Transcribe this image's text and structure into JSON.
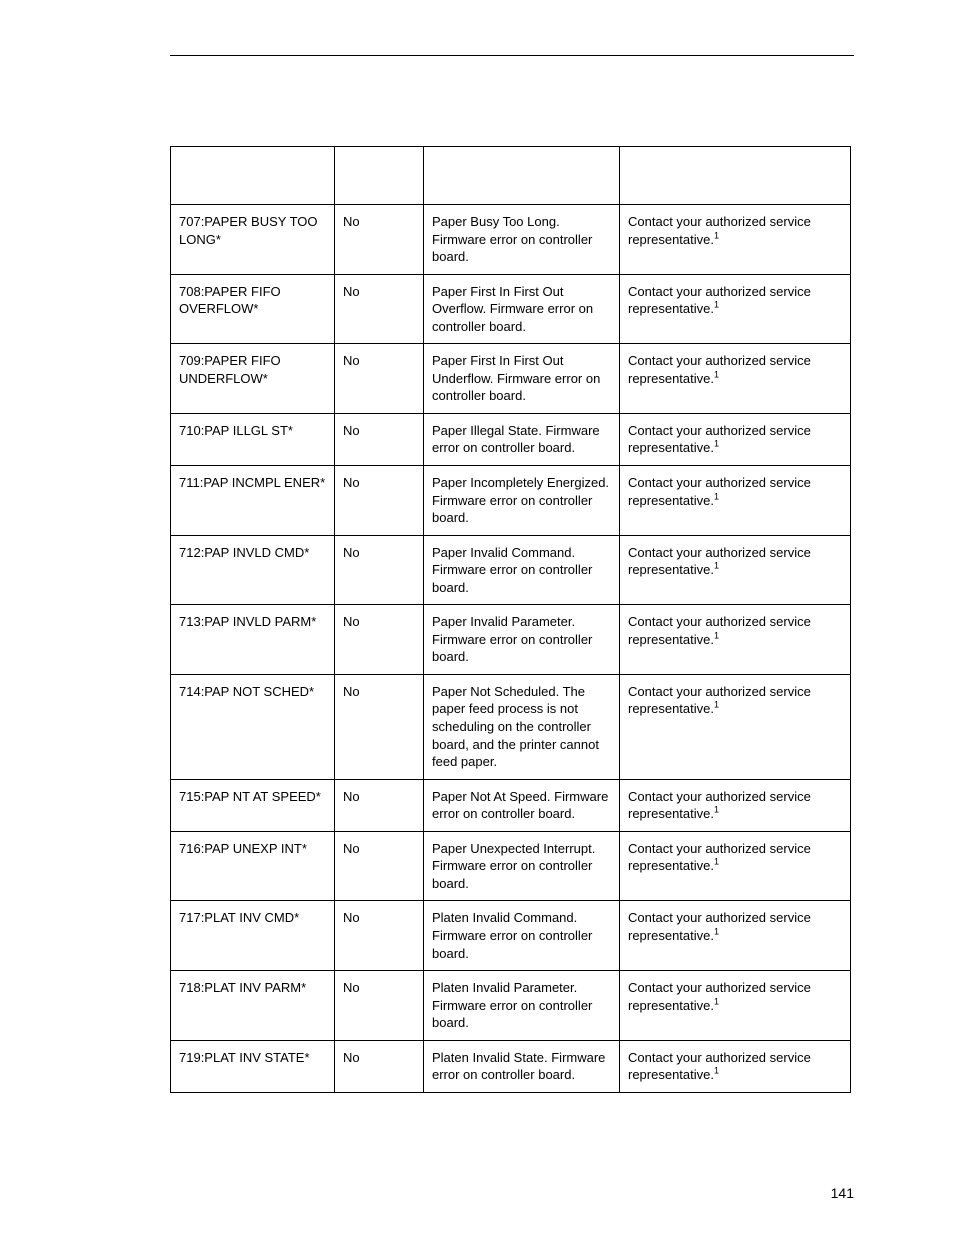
{
  "page_number": "141",
  "table": {
    "rows": [
      {
        "msg": "707:PAPER BUSY TOO LONG*",
        "clr": "No",
        "expl": "Paper Busy Too Long. Firmware error on controller board.",
        "sol": "Contact your authorized service representative.",
        "sup": "1"
      },
      {
        "msg": "708:PAPER FIFO OVERFLOW*",
        "clr": "No",
        "expl": "Paper First In First Out Overflow. Firmware error on controller board.",
        "sol": "Contact your authorized service representative.",
        "sup": "1"
      },
      {
        "msg": "709:PAPER FIFO UNDERFLOW*",
        "clr": "No",
        "expl": "Paper First In First Out Underflow. Firmware error on controller board.",
        "sol": "Contact your authorized service representative.",
        "sup": "1"
      },
      {
        "msg": "710:PAP ILLGL ST*",
        "clr": "No",
        "expl": "Paper Illegal State. Firmware error on controller board.",
        "sol": "Contact your authorized service representative.",
        "sup": "1"
      },
      {
        "msg": "711:PAP INCMPL ENER*",
        "clr": "No",
        "expl": "Paper Incompletely Energized. Firmware error on controller board.",
        "sol": "Contact your authorized service representative.",
        "sup": "1"
      },
      {
        "msg": "712:PAP INVLD CMD*",
        "clr": "No",
        "expl": "Paper Invalid Command. Firmware error on controller board.",
        "sol": "Contact your authorized service representative.",
        "sup": "1"
      },
      {
        "msg": "713:PAP INVLD PARM*",
        "clr": "No",
        "expl": "Paper Invalid Parameter. Firmware error on controller board.",
        "sol": "Contact your authorized service representative.",
        "sup": "1"
      },
      {
        "msg": "714:PAP NOT SCHED*",
        "clr": "No",
        "expl": "Paper Not Scheduled. The paper feed process is not scheduling on the controller board, and the printer cannot feed paper.",
        "sol": "Contact your authorized service representative.",
        "sup": "1"
      },
      {
        "msg": "715:PAP NT AT SPEED*",
        "clr": "No",
        "expl": "Paper Not At Speed. Firmware error on controller board.",
        "sol": "Contact your authorized service representative.",
        "sup": "1"
      },
      {
        "msg": "716:PAP UNEXP INT*",
        "clr": "No",
        "expl": "Paper Unexpected Interrupt. Firmware error on controller board.",
        "sol": "Contact your authorized service representative.",
        "sup": "1"
      },
      {
        "msg": "717:PLAT INV CMD*",
        "clr": "No",
        "expl": "Platen Invalid Command. Firmware error on controller board.",
        "sol": "Contact your authorized service representative.",
        "sup": "1"
      },
      {
        "msg": "718:PLAT INV PARM*",
        "clr": "No",
        "expl": "Platen Invalid Parameter. Firmware error on controller board.",
        "sol": "Contact your authorized service representative.",
        "sup": "1"
      },
      {
        "msg": "719:PLAT INV STATE*",
        "clr": "No",
        "expl": "Platen Invalid State. Firmware error on controller board.",
        "sol": "Contact your authorized service representative.",
        "sup": "1"
      }
    ]
  }
}
